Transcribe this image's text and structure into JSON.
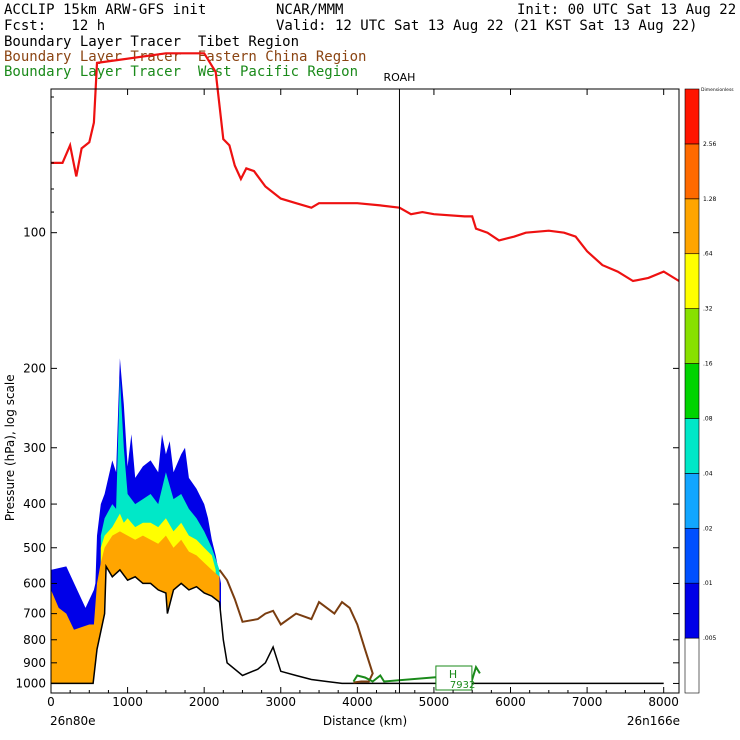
{
  "header": {
    "model": "ACCLIP 15km ARW-GFS init",
    "center": "NCAR/MMM",
    "init": "Init: 00 UTC Sat 13 Aug 22",
    "fcst": "Fcst:   12 h",
    "valid": "Valid: 12 UTC Sat 13 Aug 22 (21 KST Sat 13 Aug 22)",
    "legend": [
      {
        "text": "Boundary Layer Tracer  Tibet Region",
        "color": "#000000"
      },
      {
        "text": "Boundary Layer Tracer  Eastern China Region",
        "color": "#8B4513"
      },
      {
        "text": "Boundary Layer Tracer  West Pacific Region",
        "color": "#1a8a1a"
      }
    ]
  },
  "colors": {
    "tropopause": "#ee1111",
    "terrain": "#000000",
    "eastern_china": "#7a3d10",
    "west_pacific": "#1a8a1a"
  },
  "chart_data": {
    "type": "area",
    "xlabel": "Distance (km)",
    "ylabel": "Pressure (hPa), log scale",
    "x_ticks": [
      0,
      1000,
      2000,
      3000,
      4000,
      5000,
      6000,
      7000,
      8000
    ],
    "y_ticks": [
      100,
      200,
      300,
      400,
      500,
      600,
      700,
      800,
      900,
      1000
    ],
    "xlim": [
      0,
      8200
    ],
    "ylim_hpa": [
      1050,
      48
    ],
    "y_scale": "log",
    "left_end_label": "26n80e",
    "right_end_label": "26n166e",
    "marker_line": {
      "label": "ROAH",
      "x": 4550
    },
    "high_marker": {
      "label": "H",
      "value": "7932",
      "x": 5300
    },
    "colorbar": {
      "levels": [
        ".005",
        ".01",
        ".02",
        ".04",
        ".08",
        ".16",
        ".32",
        ".64",
        "1.28",
        "2.56"
      ],
      "top_label": "Dimensionless",
      "colors": [
        "#ffffff",
        "#0000e8",
        "#0050ff",
        "#12a6ff",
        "#00e8c8",
        "#00d400",
        "#88e000",
        "#ffff00",
        "#ffa500",
        "#ff6a00",
        "#ff1500"
      ]
    },
    "tropopause_hpa": [
      [
        0,
        70
      ],
      [
        150,
        70
      ],
      [
        250,
        64
      ],
      [
        330,
        75
      ],
      [
        400,
        65
      ],
      [
        500,
        63
      ],
      [
        560,
        57
      ],
      [
        600,
        42
      ],
      [
        1500,
        40
      ],
      [
        2000,
        40
      ],
      [
        2150,
        44
      ],
      [
        2250,
        62
      ],
      [
        2330,
        64
      ],
      [
        2400,
        71
      ],
      [
        2480,
        76
      ],
      [
        2550,
        72
      ],
      [
        2650,
        73
      ],
      [
        2800,
        79
      ],
      [
        3000,
        84
      ],
      [
        3200,
        86
      ],
      [
        3400,
        88
      ],
      [
        3500,
        86
      ],
      [
        3800,
        86
      ],
      [
        4000,
        86
      ],
      [
        4300,
        87
      ],
      [
        4550,
        88
      ],
      [
        4700,
        91
      ],
      [
        4850,
        90
      ],
      [
        5000,
        91
      ],
      [
        5400,
        92
      ],
      [
        5500,
        92
      ],
      [
        5550,
        98
      ],
      [
        5700,
        100
      ],
      [
        5850,
        104
      ],
      [
        6050,
        102
      ],
      [
        6200,
        100
      ],
      [
        6500,
        99
      ],
      [
        6700,
        100
      ],
      [
        6850,
        102
      ],
      [
        7000,
        110
      ],
      [
        7200,
        118
      ],
      [
        7400,
        122
      ],
      [
        7600,
        128
      ],
      [
        7800,
        126
      ],
      [
        8000,
        122
      ],
      [
        8200,
        128
      ]
    ],
    "terrain_hpa": [
      [
        0,
        1000
      ],
      [
        80,
        1000
      ],
      [
        200,
        1000
      ],
      [
        350,
        1000
      ],
      [
        450,
        1000
      ],
      [
        550,
        1000
      ],
      [
        600,
        840
      ],
      [
        700,
        700
      ],
      [
        720,
        550
      ],
      [
        800,
        580
      ],
      [
        900,
        560
      ],
      [
        1000,
        590
      ],
      [
        1100,
        580
      ],
      [
        1200,
        600
      ],
      [
        1300,
        600
      ],
      [
        1400,
        620
      ],
      [
        1500,
        630
      ],
      [
        1520,
        700
      ],
      [
        1600,
        620
      ],
      [
        1700,
        600
      ],
      [
        1800,
        620
      ],
      [
        1900,
        610
      ],
      [
        2000,
        630
      ],
      [
        2100,
        640
      ],
      [
        2200,
        660
      ],
      [
        2250,
        800
      ],
      [
        2300,
        900
      ],
      [
        2500,
        960
      ],
      [
        2700,
        930
      ],
      [
        2800,
        900
      ],
      [
        2900,
        830
      ],
      [
        3000,
        940
      ],
      [
        3200,
        960
      ],
      [
        3400,
        980
      ],
      [
        3600,
        990
      ],
      [
        3800,
        1000
      ],
      [
        4000,
        1000
      ],
      [
        4500,
        1000
      ],
      [
        4800,
        1000
      ],
      [
        5000,
        1000
      ],
      [
        6000,
        1000
      ],
      [
        7000,
        1000
      ],
      [
        8000,
        1000
      ]
    ],
    "tibet_tracer_levels": [
      {
        "level": ".005",
        "color": "#0000e8",
        "top_hpa": [
          [
            0,
            560
          ],
          [
            200,
            550
          ],
          [
            450,
            680
          ],
          [
            560,
            620
          ],
          [
            580,
            600
          ],
          [
            600,
            470
          ],
          [
            650,
            400
          ],
          [
            700,
            380
          ],
          [
            800,
            320
          ],
          [
            850,
            340
          ],
          [
            900,
            190
          ],
          [
            950,
            240
          ],
          [
            1000,
            330
          ],
          [
            1050,
            280
          ],
          [
            1100,
            350
          ],
          [
            1200,
            330
          ],
          [
            1300,
            320
          ],
          [
            1400,
            340
          ],
          [
            1450,
            280
          ],
          [
            1500,
            310
          ],
          [
            1550,
            290
          ],
          [
            1600,
            340
          ],
          [
            1700,
            310
          ],
          [
            1750,
            300
          ],
          [
            1800,
            350
          ],
          [
            1900,
            370
          ],
          [
            2000,
            400
          ],
          [
            2050,
            430
          ],
          [
            2100,
            480
          ],
          [
            2150,
            520
          ],
          [
            2220,
            600
          ]
        ]
      },
      {
        "level": ".08",
        "color": "#00e8c8",
        "top_hpa": [
          [
            650,
            470
          ],
          [
            700,
            430
          ],
          [
            800,
            400
          ],
          [
            850,
            410
          ],
          [
            900,
            210
          ],
          [
            950,
            300
          ],
          [
            1000,
            380
          ],
          [
            1100,
            400
          ],
          [
            1200,
            390
          ],
          [
            1300,
            380
          ],
          [
            1400,
            400
          ],
          [
            1500,
            340
          ],
          [
            1600,
            390
          ],
          [
            1700,
            380
          ],
          [
            1800,
            410
          ],
          [
            1900,
            430
          ],
          [
            2000,
            460
          ],
          [
            2100,
            500
          ],
          [
            2200,
            560
          ]
        ]
      },
      {
        "level": ".32",
        "color": "#ffff00",
        "top_hpa": [
          [
            650,
            500
          ],
          [
            700,
            470
          ],
          [
            800,
            450
          ],
          [
            900,
            420
          ],
          [
            950,
            440
          ],
          [
            1000,
            430
          ],
          [
            1100,
            450
          ],
          [
            1200,
            440
          ],
          [
            1300,
            440
          ],
          [
            1400,
            450
          ],
          [
            1500,
            430
          ],
          [
            1600,
            460
          ],
          [
            1700,
            440
          ],
          [
            1800,
            470
          ],
          [
            1900,
            480
          ],
          [
            2000,
            500
          ],
          [
            2100,
            520
          ],
          [
            2150,
            560
          ]
        ]
      },
      {
        "level": ".64",
        "color": "#ffa500",
        "top_hpa": [
          [
            0,
            620
          ],
          [
            100,
            680
          ],
          [
            200,
            700
          ],
          [
            300,
            760
          ],
          [
            400,
            750
          ],
          [
            500,
            740
          ],
          [
            560,
            740
          ],
          [
            600,
            600
          ],
          [
            650,
            540
          ],
          [
            700,
            500
          ],
          [
            800,
            470
          ],
          [
            900,
            460
          ],
          [
            1000,
            470
          ],
          [
            1100,
            480
          ],
          [
            1200,
            470
          ],
          [
            1300,
            480
          ],
          [
            1400,
            490
          ],
          [
            1500,
            470
          ],
          [
            1600,
            500
          ],
          [
            1700,
            480
          ],
          [
            1800,
            510
          ],
          [
            1900,
            520
          ],
          [
            2000,
            540
          ],
          [
            2100,
            560
          ],
          [
            2200,
            580
          ]
        ]
      }
    ],
    "eastern_china_tracer_hpa": [
      [
        2200,
        560
      ],
      [
        2300,
        590
      ],
      [
        2400,
        650
      ],
      [
        2500,
        730
      ],
      [
        2700,
        720
      ],
      [
        2800,
        700
      ],
      [
        2900,
        690
      ],
      [
        3000,
        740
      ],
      [
        3200,
        700
      ],
      [
        3400,
        720
      ],
      [
        3500,
        660
      ],
      [
        3700,
        700
      ],
      [
        3800,
        660
      ],
      [
        3900,
        680
      ],
      [
        4000,
        740
      ],
      [
        4100,
        840
      ],
      [
        4200,
        950
      ],
      [
        4150,
        990
      ],
      [
        4050,
        990
      ],
      [
        3950,
        995
      ]
    ],
    "west_pacific_tracer_hpa": [
      [
        3950,
        990
      ],
      [
        4000,
        960
      ],
      [
        4100,
        970
      ],
      [
        4200,
        990
      ],
      [
        4300,
        960
      ],
      [
        4350,
        990
      ],
      [
        5300,
        960
      ],
      [
        5450,
        940
      ],
      [
        5500,
        980
      ],
      [
        5550,
        920
      ],
      [
        5600,
        950
      ]
    ]
  }
}
